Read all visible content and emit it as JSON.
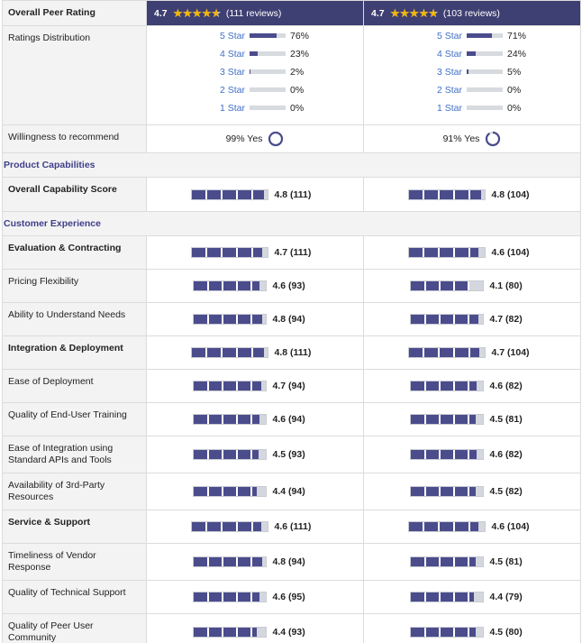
{
  "max_rating": 5,
  "header": {
    "label": "Overall Peer Rating",
    "products": [
      {
        "rating": 4.7,
        "reviews": "(111 reviews)"
      },
      {
        "rating": 4.7,
        "reviews": "(103 reviews)"
      }
    ]
  },
  "distribution": {
    "label": "Ratings Distribution",
    "products": [
      [
        {
          "name": "5 Star",
          "percent": {
            "value": 76,
            "label": "76%"
          }
        },
        {
          "name": "4 Star",
          "percent": {
            "value": 23,
            "label": "23%"
          }
        },
        {
          "name": "3 Star",
          "percent": {
            "value": 2,
            "label": "2%"
          }
        },
        {
          "name": "2 Star",
          "percent": {
            "value": 0,
            "label": "0%"
          }
        },
        {
          "name": "1 Star",
          "percent": {
            "value": 0,
            "label": "0%"
          }
        }
      ],
      [
        {
          "name": "5 Star",
          "percent": {
            "value": 71,
            "label": "71%"
          }
        },
        {
          "name": "4 Star",
          "percent": {
            "value": 24,
            "label": "24%"
          }
        },
        {
          "name": "3 Star",
          "percent": {
            "value": 5,
            "label": "5%"
          }
        },
        {
          "name": "2 Star",
          "percent": {
            "value": 0,
            "label": "0%"
          }
        },
        {
          "name": "1 Star",
          "percent": {
            "value": 0,
            "label": "0%"
          }
        }
      ]
    ]
  },
  "recommend": {
    "label": "Willingness to recommend",
    "products": [
      {
        "value": 99,
        "label": "99% Yes"
      },
      {
        "value": 91,
        "label": "91% Yes"
      }
    ]
  },
  "sections": [
    {
      "title": "Product Capabilities",
      "rows": [
        {
          "label": "Overall Capability Score",
          "bold": true,
          "values": [
            {
              "score": 4.8,
              "label": "4.8 (111)"
            },
            {
              "score": 4.8,
              "label": "4.8 (104)"
            }
          ]
        }
      ]
    },
    {
      "title": "Customer Experience",
      "rows": [
        {
          "label": "Evaluation & Contracting",
          "bold": true,
          "values": [
            {
              "score": 4.7,
              "label": "4.7 (111)"
            },
            {
              "score": 4.6,
              "label": "4.6 (104)"
            }
          ]
        },
        {
          "label": "Pricing Flexibility",
          "bold": false,
          "values": [
            {
              "score": 4.6,
              "label": "4.6 (93)"
            },
            {
              "score": 4.1,
              "label": "4.1 (80)"
            }
          ]
        },
        {
          "label": "Ability to Understand Needs",
          "bold": false,
          "values": [
            {
              "score": 4.8,
              "label": "4.8 (94)"
            },
            {
              "score": 4.7,
              "label": "4.7 (82)"
            }
          ]
        },
        {
          "label": "Integration & Deployment",
          "bold": true,
          "values": [
            {
              "score": 4.8,
              "label": "4.8 (111)"
            },
            {
              "score": 4.7,
              "label": "4.7 (104)"
            }
          ]
        },
        {
          "label": "Ease of Deployment",
          "bold": false,
          "values": [
            {
              "score": 4.7,
              "label": "4.7 (94)"
            },
            {
              "score": 4.6,
              "label": "4.6 (82)"
            }
          ]
        },
        {
          "label": "Quality of End-User Training",
          "bold": false,
          "values": [
            {
              "score": 4.6,
              "label": "4.6 (94)"
            },
            {
              "score": 4.5,
              "label": "4.5 (81)"
            }
          ]
        },
        {
          "label": "Ease of Integration using Standard APIs and Tools",
          "bold": false,
          "values": [
            {
              "score": 4.5,
              "label": "4.5 (93)"
            },
            {
              "score": 4.6,
              "label": "4.6 (82)"
            }
          ]
        },
        {
          "label": "Availability of 3rd-Party Resources",
          "bold": false,
          "values": [
            {
              "score": 4.4,
              "label": "4.4 (94)"
            },
            {
              "score": 4.5,
              "label": "4.5 (82)"
            }
          ]
        },
        {
          "label": "Service & Support",
          "bold": true,
          "values": [
            {
              "score": 4.6,
              "label": "4.6 (111)"
            },
            {
              "score": 4.6,
              "label": "4.6 (104)"
            }
          ]
        },
        {
          "label": "Timeliness of Vendor Response",
          "bold": false,
          "values": [
            {
              "score": 4.8,
              "label": "4.8 (94)"
            },
            {
              "score": 4.5,
              "label": "4.5 (81)"
            }
          ]
        },
        {
          "label": "Quality of Technical Support",
          "bold": false,
          "values": [
            {
              "score": 4.6,
              "label": "4.6 (95)"
            },
            {
              "score": 4.4,
              "label": "4.4 (79)"
            }
          ]
        },
        {
          "label": "Quality of Peer User Community",
          "bold": false,
          "values": [
            {
              "score": 4.4,
              "label": "4.4 (93)"
            },
            {
              "score": 4.5,
              "label": "4.5 (80)"
            }
          ]
        }
      ]
    }
  ]
}
